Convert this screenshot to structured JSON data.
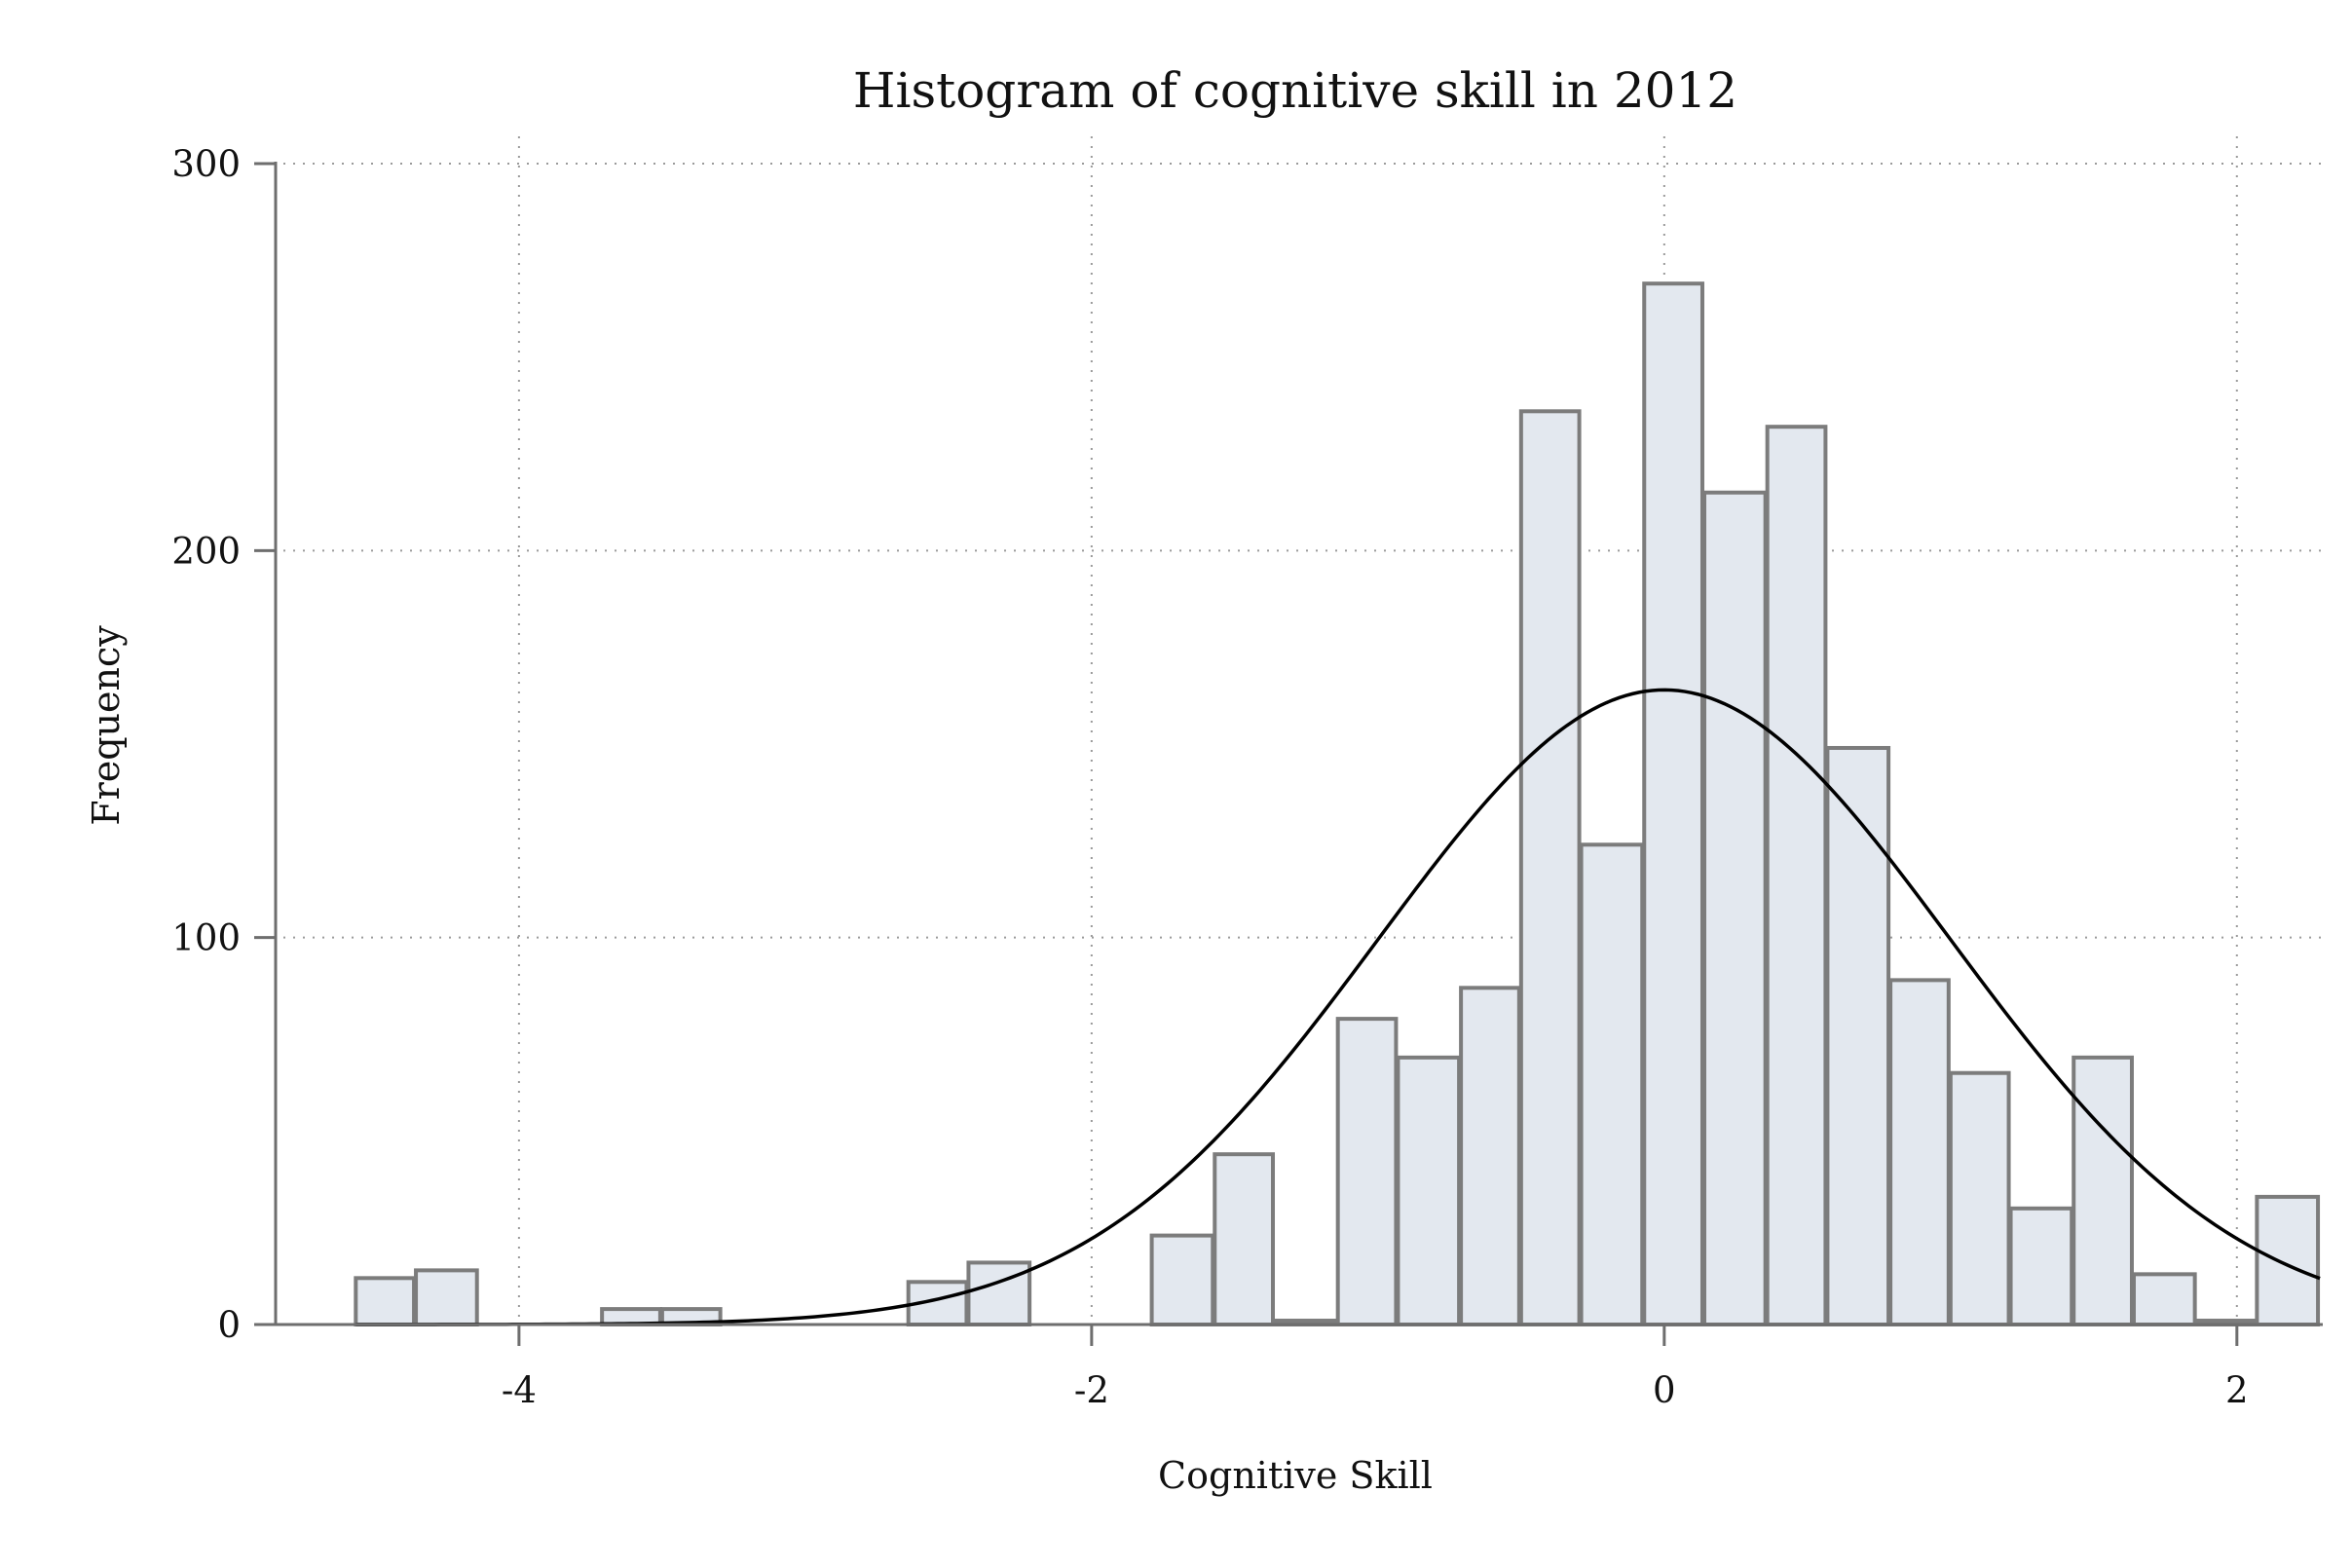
{
  "chart_data": {
    "type": "bar",
    "title": "Histogram of cognitive skill in 2012",
    "xlabel": "Cognitive Skill",
    "ylabel": "Frequency",
    "xlim": [
      -4.85,
      2.3
    ],
    "ylim": [
      0,
      300
    ],
    "xticks": [
      -4,
      -2,
      0,
      2
    ],
    "xtick_labels": [
      "-4",
      "-2",
      "0",
      "2"
    ],
    "yticks": [
      0,
      100,
      200,
      300
    ],
    "ytick_labels": [
      "0",
      "100",
      "200",
      "300"
    ],
    "grid": true,
    "bin_width": 0.2143,
    "bins": [
      {
        "x0": -4.57,
        "x1": -4.36,
        "count": 12
      },
      {
        "x0": -4.36,
        "x1": -4.14,
        "count": 14
      },
      {
        "x0": -3.71,
        "x1": -3.5,
        "count": 4
      },
      {
        "x0": -3.5,
        "x1": -3.29,
        "count": 4
      },
      {
        "x0": -2.64,
        "x1": -2.43,
        "count": 11
      },
      {
        "x0": -2.43,
        "x1": -2.21,
        "count": 16
      },
      {
        "x0": -1.79,
        "x1": -1.57,
        "count": 23
      },
      {
        "x0": -1.57,
        "x1": -1.36,
        "count": 44
      },
      {
        "x0": -1.36,
        "x1": -1.14,
        "count": 1
      },
      {
        "x0": -1.14,
        "x1": -0.93,
        "count": 79
      },
      {
        "x0": -0.93,
        "x1": -0.71,
        "count": 69
      },
      {
        "x0": -0.71,
        "x1": -0.5,
        "count": 87
      },
      {
        "x0": -0.5,
        "x1": -0.29,
        "count": 236
      },
      {
        "x0": -0.29,
        "x1": -0.07,
        "count": 124
      },
      {
        "x0": -0.07,
        "x1": 0.14,
        "count": 269
      },
      {
        "x0": 0.14,
        "x1": 0.36,
        "count": 215
      },
      {
        "x0": 0.36,
        "x1": 0.57,
        "count": 232
      },
      {
        "x0": 0.57,
        "x1": 0.79,
        "count": 149
      },
      {
        "x0": 0.79,
        "x1": 1.0,
        "count": 89
      },
      {
        "x0": 1.0,
        "x1": 1.21,
        "count": 65
      },
      {
        "x0": 1.21,
        "x1": 1.43,
        "count": 30
      },
      {
        "x0": 1.43,
        "x1": 1.64,
        "count": 69
      },
      {
        "x0": 1.64,
        "x1": 1.86,
        "count": 13
      },
      {
        "x0": 1.86,
        "x1": 2.07,
        "count": 1
      },
      {
        "x0": 2.07,
        "x1": 2.29,
        "count": 33
      }
    ],
    "normal_curve": {
      "mean": 0,
      "sd": 1,
      "peak": 164,
      "x_range": [
        -4.57,
        2.29
      ]
    }
  }
}
